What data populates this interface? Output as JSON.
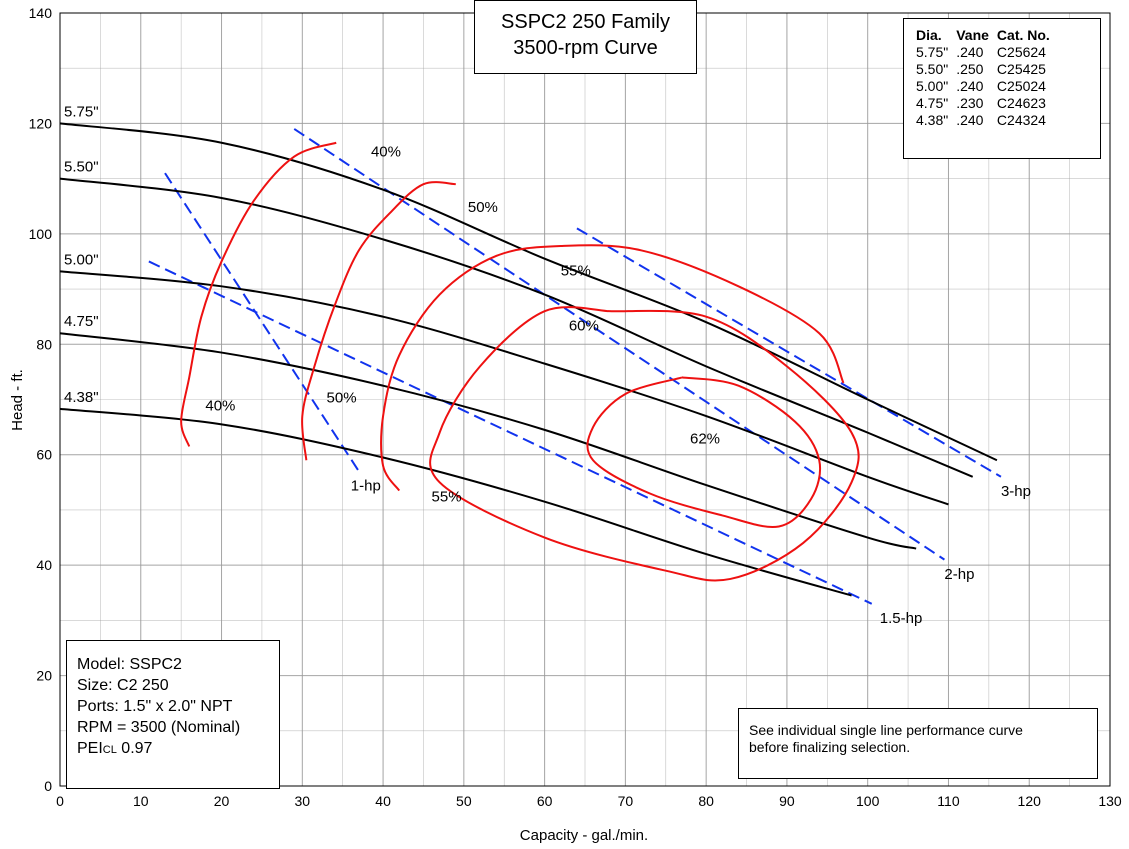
{
  "chart_data": {
    "type": "line",
    "title_lines": [
      "SSPC2 250 Family",
      "3500-rpm Curve"
    ],
    "xlabel": "Capacity - gal./min.",
    "ylabel": "Head - ft.",
    "xlim": [
      0,
      130
    ],
    "ylim": [
      0,
      140
    ],
    "xticks": [
      0,
      10,
      20,
      30,
      40,
      50,
      60,
      70,
      80,
      90,
      100,
      110,
      120,
      130
    ],
    "yticks": [
      0,
      20,
      40,
      60,
      80,
      100,
      120,
      140
    ],
    "grid": true,
    "impeller_curves": [
      {
        "label": "5.75\"",
        "x": [
          0,
          20,
          40,
          60,
          80,
          100,
          116
        ],
        "y": [
          120,
          116.5,
          108,
          95.5,
          84,
          70,
          59
        ]
      },
      {
        "label": "5.50\"",
        "x": [
          0,
          20,
          40,
          60,
          80,
          100,
          113
        ],
        "y": [
          110,
          106.5,
          99,
          89,
          76,
          64,
          56
        ]
      },
      {
        "label": "5.00\"",
        "x": [
          0,
          20,
          40,
          60,
          80,
          100,
          110
        ],
        "y": [
          93.2,
          90.5,
          85,
          76.5,
          67,
          56,
          51
        ]
      },
      {
        "label": "4.75\"",
        "x": [
          0,
          20,
          40,
          60,
          80,
          100,
          106
        ],
        "y": [
          82,
          78.5,
          72.5,
          64.5,
          54.5,
          45,
          43
        ]
      },
      {
        "label": "4.38\"",
        "x": [
          0,
          20,
          40,
          60,
          80,
          98
        ],
        "y": [
          68.3,
          65.5,
          59.5,
          51.5,
          42,
          34.5
        ]
      }
    ],
    "efficiency_curves": [
      {
        "label": "40%",
        "points": [
          [
            34.2,
            116.5
          ],
          [
            29,
            114
          ],
          [
            24,
            106
          ],
          [
            20,
            95
          ],
          [
            17.5,
            85
          ],
          [
            16,
            74
          ],
          [
            15,
            66
          ],
          [
            16,
            61.5
          ]
        ]
      },
      {
        "label": "50%",
        "points": [
          [
            49,
            109
          ],
          [
            45,
            109
          ],
          [
            41,
            104
          ],
          [
            37,
            97
          ],
          [
            34,
            87
          ],
          [
            31.5,
            76
          ],
          [
            30,
            67
          ],
          [
            30.5,
            59
          ]
        ]
      },
      {
        "label": "55%",
        "points": [
          [
            97,
            73
          ],
          [
            94,
            82
          ],
          [
            84,
            90.5
          ],
          [
            72,
            97
          ],
          [
            62,
            97.8
          ],
          [
            54,
            96
          ],
          [
            47,
            89
          ],
          [
            42,
            78
          ],
          [
            40,
            67
          ],
          [
            40,
            58
          ],
          [
            42,
            53.5
          ]
        ]
      },
      {
        "label": "60%",
        "points": [
          [
            68,
            86
          ],
          [
            80,
            85
          ],
          [
            90,
            76
          ],
          [
            98,
            64
          ],
          [
            98,
            55
          ],
          [
            92,
            44
          ],
          [
            83,
            37.5
          ],
          [
            75,
            39
          ],
          [
            60,
            45
          ],
          [
            47,
            55
          ],
          [
            47,
            64
          ],
          [
            52,
            76
          ],
          [
            60,
            86
          ],
          [
            68,
            86
          ]
        ]
      },
      {
        "label": "62%",
        "points": [
          [
            77,
            74
          ],
          [
            84,
            72.5
          ],
          [
            91,
            66
          ],
          [
            94,
            59
          ],
          [
            93,
            52
          ],
          [
            89,
            47
          ],
          [
            82,
            49
          ],
          [
            73,
            53
          ],
          [
            66,
            59
          ],
          [
            66,
            65
          ],
          [
            70,
            71
          ],
          [
            77,
            74
          ]
        ]
      }
    ],
    "hp_lines": [
      {
        "label": "1.5-hp",
        "x": [
          11,
          100.5
        ],
        "y": [
          95,
          33
        ]
      },
      {
        "label": "1-hp",
        "x": [
          13,
          37
        ],
        "y": [
          111,
          57
        ]
      },
      {
        "label": "2-hp",
        "x": [
          29,
          109.5
        ],
        "y": [
          119,
          41
        ]
      },
      {
        "label": "3-hp",
        "x": [
          64,
          116.5
        ],
        "y": [
          101,
          56
        ]
      }
    ],
    "annotations": [
      {
        "text": "40%",
        "x": 38.5,
        "y": 114
      },
      {
        "text": "40%",
        "x": 18,
        "y": 68
      },
      {
        "text": "50%",
        "x": 50.5,
        "y": 104
      },
      {
        "text": "50%",
        "x": 33,
        "y": 69.5
      },
      {
        "text": "55%",
        "x": 62,
        "y": 92.5
      },
      {
        "text": "55%",
        "x": 46,
        "y": 51.5
      },
      {
        "text": "60%",
        "x": 63,
        "y": 82.5
      },
      {
        "text": "62%",
        "x": 78,
        "y": 62
      },
      {
        "text": "1-hp",
        "x": 36,
        "y": 53.5
      },
      {
        "text": "1.5-hp",
        "x": 101.5,
        "y": 29.5
      },
      {
        "text": "2-hp",
        "x": 109.5,
        "y": 37.5
      },
      {
        "text": "3-hp",
        "x": 116.5,
        "y": 52.5
      }
    ],
    "colors": {
      "impeller": "#000000",
      "efficiency": "#ee1111",
      "hp": "#1133ee",
      "grid": "#9a9a9a"
    }
  },
  "title": {
    "line1": "SSPC2 250 Family",
    "line2": "3500-rpm Curve"
  },
  "legend": {
    "headers": [
      "Dia.",
      "Vane",
      "Cat. No."
    ],
    "rows": [
      [
        "5.75\"",
        ".240",
        "C25624"
      ],
      [
        "5.50\"",
        ".250",
        "C25425"
      ],
      [
        "5.00\"",
        ".240",
        "C25024"
      ],
      [
        "4.75\"",
        ".230",
        "C24623"
      ],
      [
        "4.38\"",
        ".240",
        "C24324"
      ]
    ]
  },
  "model_info": {
    "model": "Model: SSPC2",
    "size": "Size: C2 250",
    "ports": "Ports: 1.5\" x 2.0\" NPT",
    "rpm": "RPM = 3500 (Nominal)",
    "pei_main": "PEI",
    "pei_sub": "CL",
    "pei_value": " 0.97"
  },
  "note": {
    "line1": "See individual single line performance curve",
    "line2": "before finalizing selection."
  }
}
